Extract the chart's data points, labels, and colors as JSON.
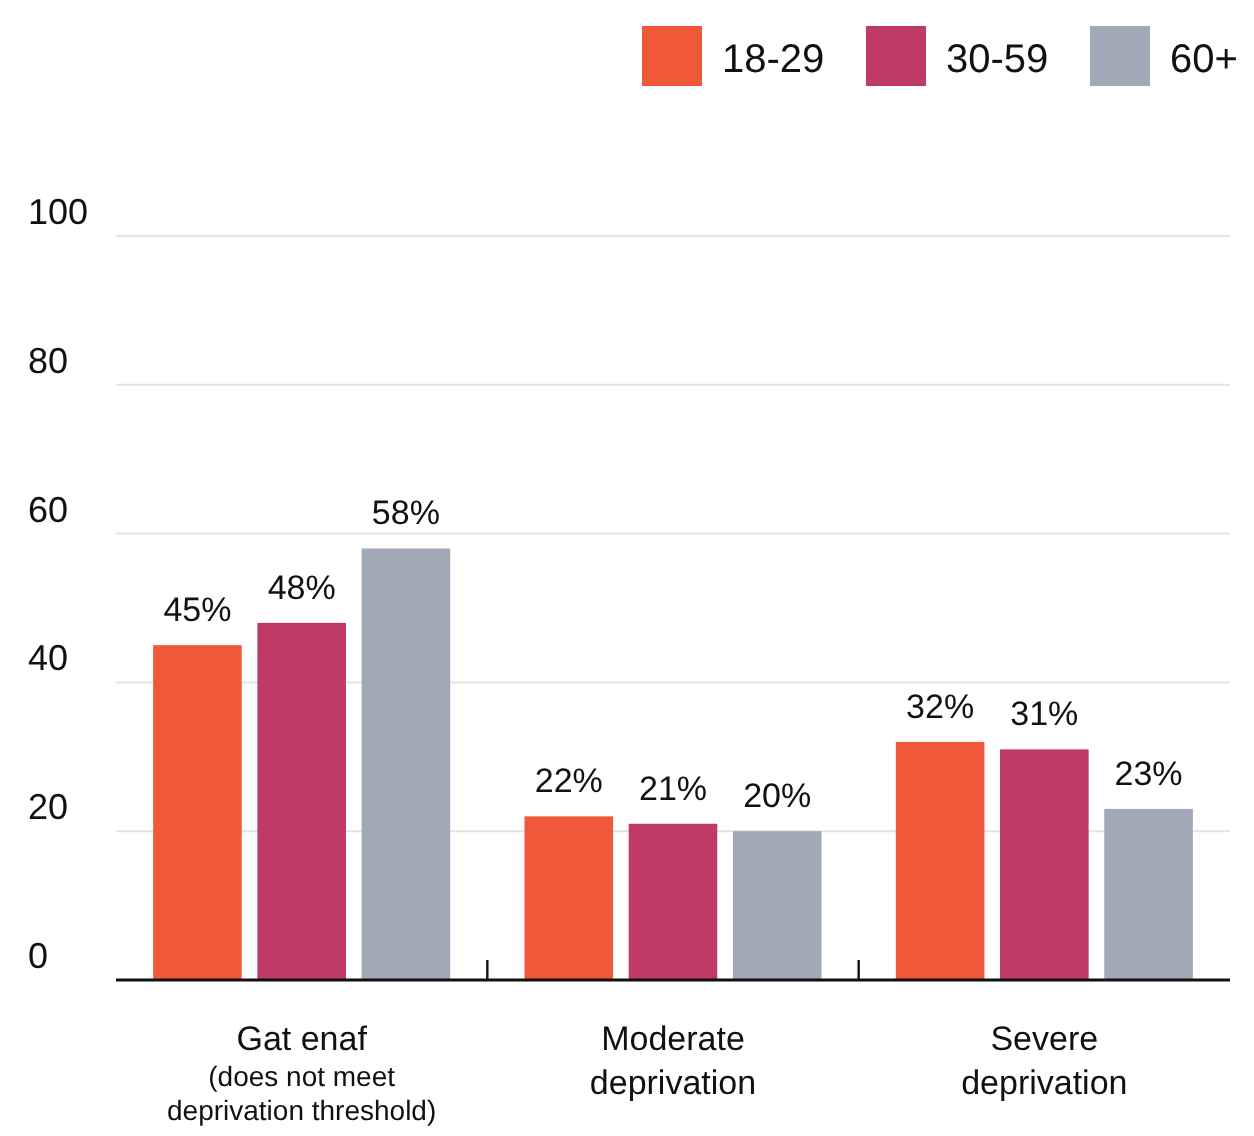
{
  "chart_data": {
    "type": "bar",
    "categories": [
      "Gat enaf\n(does not meet\ndeprivation threshold)",
      "Moderate\ndeprivation",
      "Severe\ndeprivation"
    ],
    "series": [
      {
        "name": "18-29",
        "color": "#f0583a",
        "values": [
          45,
          22,
          32
        ],
        "value_labels": [
          "45%",
          "22%",
          "32%"
        ]
      },
      {
        "name": "30-59",
        "color": "#bf3a66",
        "values": [
          48,
          21,
          31
        ],
        "value_labels": [
          "48%",
          "21%",
          "31%"
        ]
      },
      {
        "name": "60+",
        "color": "#a1a8b8",
        "values": [
          58,
          20,
          23
        ],
        "value_labels": [
          "58%",
          "20%",
          "23%"
        ]
      }
    ],
    "ylim": [
      0,
      100
    ],
    "yticks": [
      0,
      20,
      40,
      60,
      80,
      100
    ],
    "grid": "y",
    "legend": "top right"
  }
}
